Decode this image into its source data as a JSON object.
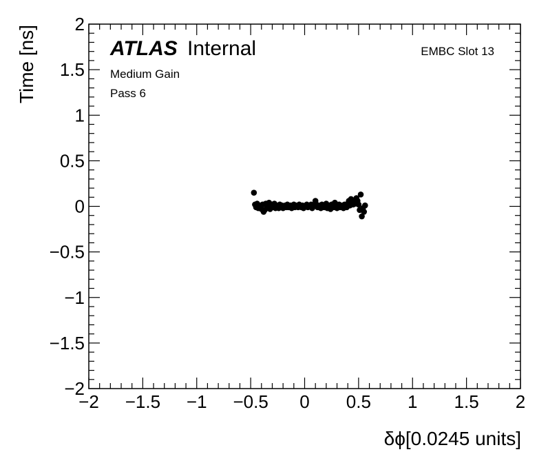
{
  "chart_data": {
    "type": "scatter",
    "title": "",
    "xlabel": "δϕ[0.0245 units]",
    "ylabel": "Time [ns]",
    "xlim": [
      -2,
      2
    ],
    "ylim": [
      -2,
      2
    ],
    "x_ticks": [
      -2,
      -1.5,
      -1,
      -0.5,
      0,
      0.5,
      1,
      1.5,
      2
    ],
    "x_tick_labels": [
      "−2",
      "−1.5",
      "−1",
      "−0.5",
      "0",
      "0.5",
      "1",
      "1.5",
      "2"
    ],
    "y_ticks": [
      -2,
      -1.5,
      -1,
      -0.5,
      0,
      0.5,
      1,
      1.5,
      2
    ],
    "y_tick_labels": [
      "−2",
      "−1.5",
      "−1",
      "−0.5",
      "0",
      "0.5",
      "1",
      "1.5",
      "2"
    ],
    "grid": false,
    "annotations": {
      "atlas": "ATLAS",
      "internal": "Internal",
      "gain": "Medium Gain",
      "pass": "Pass 6",
      "slot": "EMBC Slot 13"
    },
    "series": [
      {
        "x": [
          -0.47,
          -0.46,
          -0.45,
          -0.44,
          -0.43,
          -0.42,
          -0.41,
          -0.4,
          -0.39,
          -0.38,
          -0.37,
          -0.36,
          -0.35,
          -0.34,
          -0.33,
          -0.32,
          -0.31,
          -0.3,
          -0.29,
          -0.28,
          -0.27,
          -0.26,
          -0.25,
          -0.24,
          -0.23,
          -0.22,
          -0.21,
          -0.2,
          -0.19,
          -0.18,
          -0.17,
          -0.16,
          -0.15,
          -0.14,
          -0.13,
          -0.12,
          -0.11,
          -0.1,
          -0.09,
          -0.08,
          -0.07,
          -0.06,
          -0.05,
          -0.04,
          -0.03,
          -0.02,
          -0.01,
          0.0,
          0.01,
          0.02,
          0.03,
          0.04,
          0.05,
          0.06,
          0.07,
          0.08,
          0.09,
          0.1,
          0.11,
          0.12,
          0.13,
          0.14,
          0.15,
          0.16,
          0.17,
          0.18,
          0.19,
          0.2,
          0.21,
          0.22,
          0.23,
          0.24,
          0.25,
          0.26,
          0.27,
          0.28,
          0.29,
          0.3,
          0.31,
          0.32,
          0.33,
          0.34,
          0.35,
          0.36,
          0.37,
          0.38,
          0.39,
          0.4,
          0.41,
          0.42,
          0.43,
          0.44,
          0.45,
          0.46,
          0.47,
          0.48,
          0.49,
          0.5,
          0.51,
          0.52,
          0.53,
          0.54,
          0.55,
          0.56
        ],
        "y": [
          0.15,
          0.02,
          -0.01,
          0.03,
          -0.02,
          0.01,
          0.0,
          -0.03,
          0.02,
          -0.06,
          -0.04,
          0.03,
          -0.02,
          0.01,
          0.04,
          -0.03,
          0.0,
          0.02,
          -0.01,
          0.03,
          -0.02,
          0.01,
          0.0,
          -0.02,
          0.02,
          -0.01,
          0.01,
          -0.02,
          0.0,
          0.01,
          -0.01,
          0.02,
          -0.01,
          0.0,
          0.01,
          -0.02,
          0.0,
          0.02,
          -0.01,
          0.01,
          0.0,
          -0.01,
          0.02,
          0.0,
          -0.01,
          0.01,
          -0.02,
          0.0,
          0.01,
          0.02,
          -0.01,
          0.0,
          0.01,
          0.02,
          -0.02,
          0.0,
          0.01,
          0.06,
          0.02,
          -0.01,
          0.0,
          0.01,
          -0.02,
          0.02,
          0.0,
          -0.01,
          0.01,
          0.03,
          -0.02,
          0.0,
          0.01,
          -0.03,
          0.02,
          0.0,
          -0.01,
          0.04,
          0.01,
          -0.02,
          0.0,
          0.02,
          -0.01,
          0.0,
          0.01,
          -0.02,
          0.02,
          0.0,
          -0.01,
          0.03,
          0.06,
          0.01,
          0.08,
          0.04,
          0.02,
          0.05,
          0.03,
          0.09,
          0.06,
          0.02,
          -0.04,
          0.13,
          -0.11,
          -0.02,
          -0.06,
          0.01
        ],
        "yerr": 0.025
      }
    ]
  }
}
